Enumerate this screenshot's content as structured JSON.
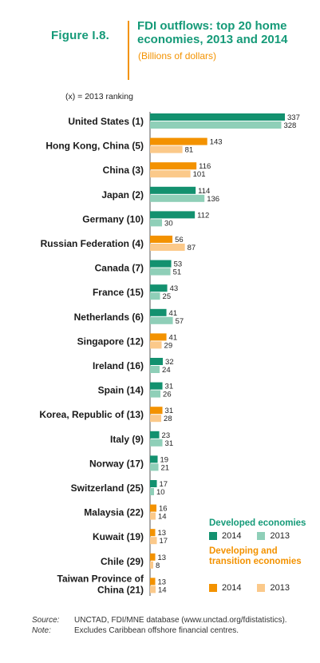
{
  "figure": {
    "label": "Figure I.8.",
    "title": "FDI outflows: top 20 home economies, 2013 and 2014",
    "subtitle": "(Billions of dollars)",
    "ranking_note": "(x) = 2013 ranking"
  },
  "colors": {
    "developed_2014": "#13916f",
    "developed_2013": "#8fcfb8",
    "developing_2014": "#f39200",
    "developing_2013": "#fbc98a"
  },
  "legend": {
    "developed_title": "Developed economies",
    "developing_title": "Developing and transition economies",
    "year_2014": "2014",
    "year_2013": "2013"
  },
  "chart_data": {
    "type": "bar",
    "orientation": "horizontal",
    "categories": [
      "United States (1)",
      "Hong Kong, China (5)",
      "China (3)",
      "Japan (2)",
      "Germany (10)",
      "Russian Federation (4)",
      "Canada (7)",
      "France (15)",
      "Netherlands (6)",
      "Singapore (12)",
      "Ireland (16)",
      "Spain (14)",
      "Korea, Republic of (13)",
      "Italy (9)",
      "Norway (17)",
      "Switzerland (25)",
      "Malaysia (22)",
      "Kuwait (19)",
      "Chile (29)",
      "Taiwan Province of China (21)"
    ],
    "groups": [
      "developed",
      "developing",
      "developing",
      "developed",
      "developed",
      "developing",
      "developed",
      "developed",
      "developed",
      "developing",
      "developed",
      "developed",
      "developing",
      "developed",
      "developed",
      "developed",
      "developing",
      "developing",
      "developing",
      "developing"
    ],
    "series": [
      {
        "name": "2014",
        "values": [
          337,
          143,
          116,
          114,
          112,
          56,
          53,
          43,
          41,
          41,
          32,
          31,
          31,
          23,
          19,
          17,
          16,
          13,
          13,
          13
        ]
      },
      {
        "name": "2013",
        "values": [
          328,
          81,
          101,
          136,
          30,
          87,
          51,
          25,
          57,
          29,
          24,
          26,
          28,
          31,
          21,
          10,
          14,
          17,
          8,
          14
        ]
      }
    ],
    "xlim": [
      0,
      337
    ]
  },
  "source": {
    "source_label": "Source:",
    "source_text": "UNCTAD, FDI/MNE database (www.unctad.org/fdistatistics).",
    "note_label": "Note:",
    "note_text": "Excludes Caribbean offshore financial centres."
  }
}
